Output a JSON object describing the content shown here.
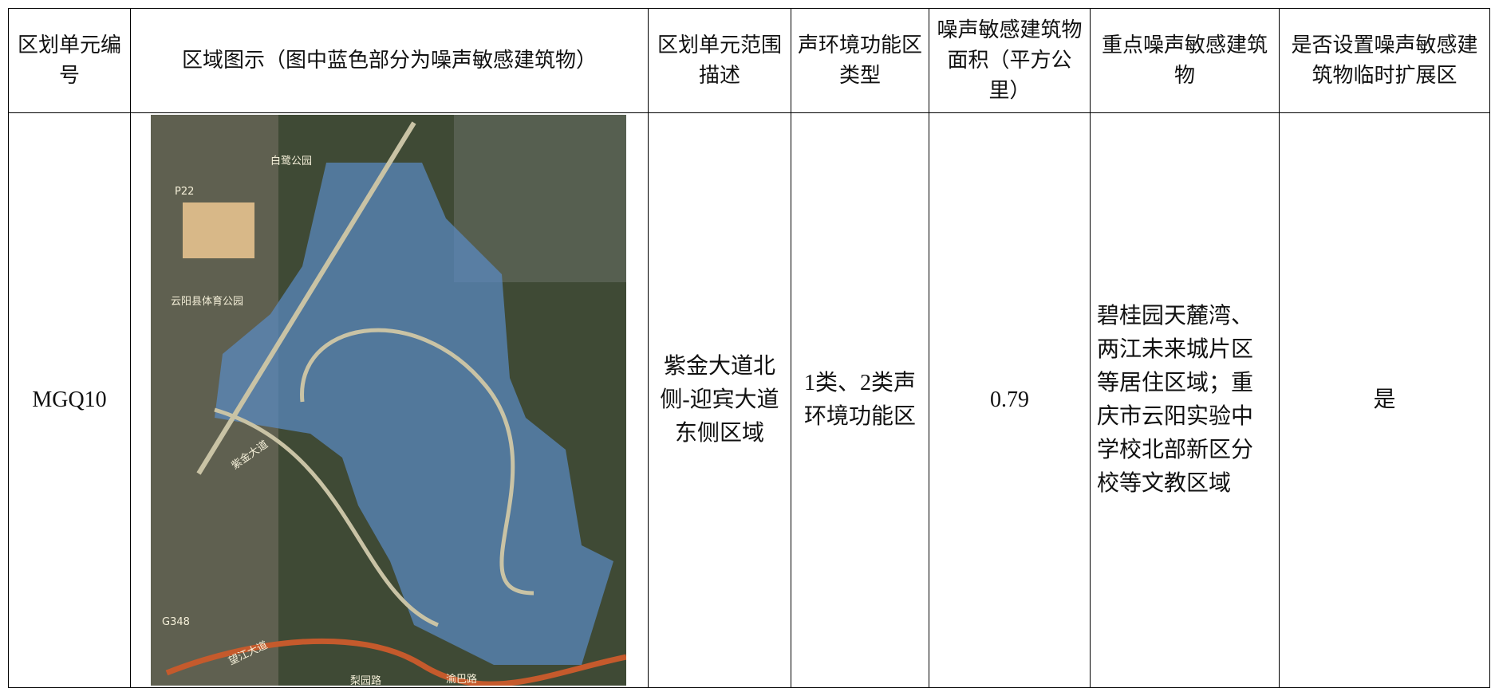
{
  "table": {
    "header": [
      "区划单元编号",
      "区域图示（图中蓝色部分为噪声敏感建筑物）",
      "区划单元范围描述",
      "声环境功能区类型",
      "噪声敏感建筑物面积（平方公里）",
      "重点噪声敏感建筑物",
      "是否设置噪声敏感建筑物临时扩展区"
    ],
    "rows": [
      [
        "MGQ10",
        "紫金大道北侧-迎宾大道东侧区域",
        "1类、2类声环境功能区",
        "0.79",
        "碧桂园天麓湾、两江未来城片区等居住区域；重庆市云阳实验中学校北部新区分校等文教区域",
        "是"
      ]
    ]
  },
  "map": {
    "labels": [
      "白鹭公园",
      "P22",
      "云阳县体育公园",
      "紫金大道",
      "G348",
      "望江大道",
      "渝巴路",
      "梨园路"
    ]
  }
}
